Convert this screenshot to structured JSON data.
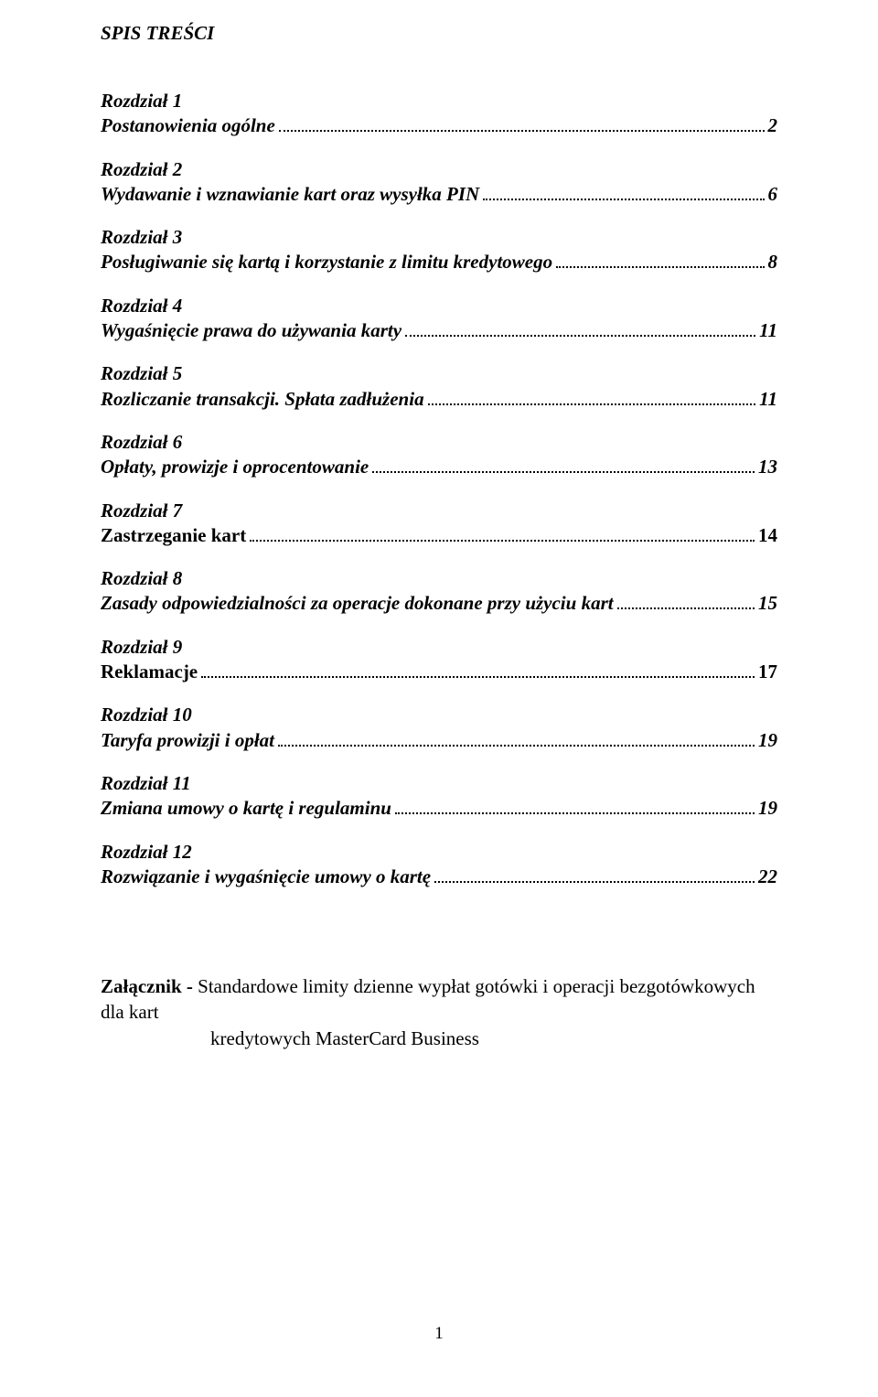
{
  "heading": "SPIS TREŚCI",
  "entries": [
    {
      "chapter": "Rozdział 1",
      "title": "Postanowienia ogólne",
      "page": "2",
      "style": "bold-italic"
    },
    {
      "chapter": "Rozdział 2",
      "title": "Wydawanie i wznawianie kart oraz wysyłka PIN",
      "page": "6",
      "style": "bold-italic"
    },
    {
      "chapter": "Rozdział 3",
      "title": "Posługiwanie się kartą i korzystanie z limitu kredytowego",
      "page": "8",
      "style": "bold-italic"
    },
    {
      "chapter": "Rozdział 4",
      "title": "Wygaśnięcie prawa do używania karty",
      "page": "11",
      "style": "bold-italic"
    },
    {
      "chapter": "Rozdział 5",
      "title": "Rozliczanie transakcji. Spłata zadłużenia",
      "page": "11",
      "style": "bold-italic"
    },
    {
      "chapter": "Rozdział 6",
      "title": "Opłaty, prowizje i oprocentowanie",
      "page": "13",
      "style": "bold-italic"
    },
    {
      "chapter": "Rozdział 7",
      "title": "Zastrzeganie kart",
      "page": "14",
      "style": "bold"
    },
    {
      "chapter": "Rozdział 8",
      "title": "Zasady odpowiedzialności za operacje dokonane przy użyciu kart",
      "page": "15",
      "style": "bold-italic"
    },
    {
      "chapter": "Rozdział 9",
      "title": "Reklamacje",
      "page": "17",
      "style": "bold"
    },
    {
      "chapter": "Rozdział 10",
      "title": "Taryfa prowizji i opłat",
      "page": "19",
      "style": "bold-italic"
    },
    {
      "chapter": "Rozdział 11",
      "title": "Zmiana umowy o kartę i regulaminu",
      "page": "19",
      "style": "bold-italic"
    },
    {
      "chapter": "Rozdział 12",
      "title": "Rozwiązanie i wygaśnięcie umowy o kartę",
      "page": "22",
      "style": "bold-italic"
    }
  ],
  "appendix": {
    "label": "Załącznik - ",
    "line1": "Standardowe limity dzienne wypłat gotówki i operacji bezgotówkowych dla kart",
    "line2": "kredytowych MasterCard Business"
  },
  "footer_page": "1",
  "colors": {
    "text": "#000000",
    "background": "#ffffff"
  },
  "typography": {
    "font_family": "Times New Roman",
    "body_size_pt": 16,
    "heading_weight": "bold",
    "heading_style": "italic"
  }
}
